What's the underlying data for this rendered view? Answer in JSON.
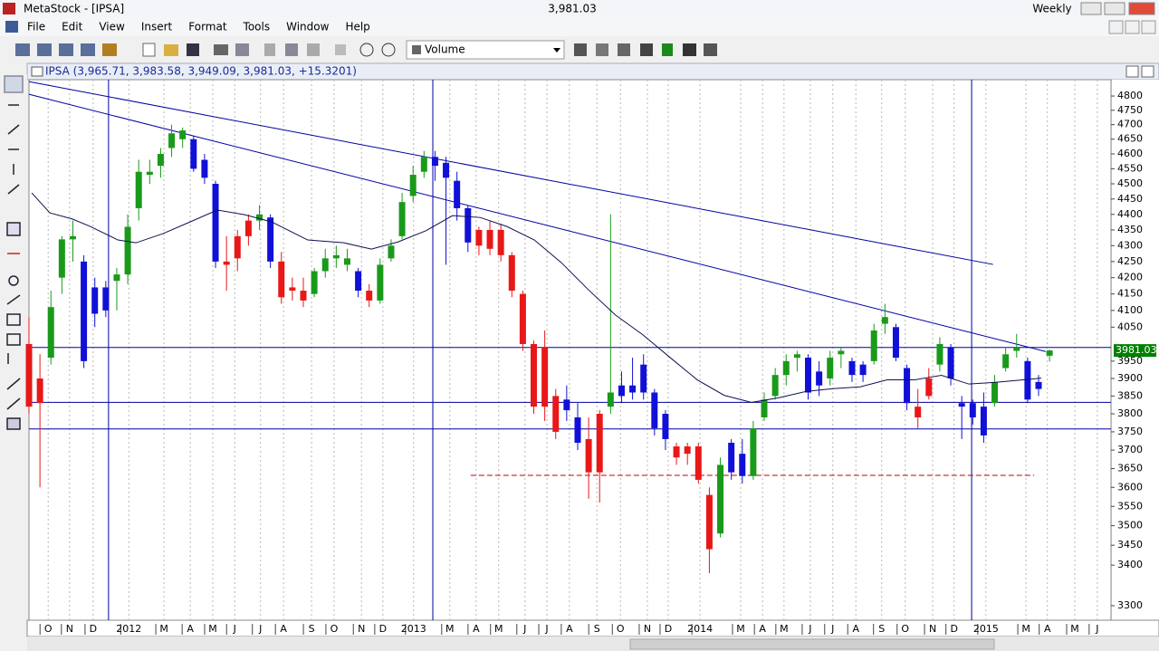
{
  "window": {
    "title": "MetaStock - [IPSA]",
    "price": "3,981.03",
    "periodicity": "Weekly"
  },
  "menu": [
    "File",
    "Edit",
    "View",
    "Insert",
    "Format",
    "Tools",
    "Window",
    "Help"
  ],
  "toolbar": {
    "indicator": "Volume"
  },
  "chart_window": {
    "label": "IPSA (3,965.71, 3,983.58, 3,949.09, 3,981.03, +15.3201)"
  },
  "chart_data": {
    "type": "candlestick",
    "log": true,
    "grid": true,
    "ylim": [
      3265,
      4858
    ],
    "yticks": [
      3300,
      3400,
      3450,
      3500,
      3550,
      3600,
      3650,
      3700,
      3750,
      3800,
      3850,
      3900,
      3950,
      4050,
      4100,
      4150,
      4200,
      4250,
      4300,
      4350,
      4400,
      4450,
      4500,
      4550,
      4600,
      4650,
      4700,
      4750,
      4800
    ],
    "xlim": [
      0,
      197.2
    ],
    "xticks": [
      {
        "value": 3.5,
        "label": "O"
      },
      {
        "value": 7.4,
        "label": "N"
      },
      {
        "value": 11.7,
        "label": "D"
      },
      {
        "value": 18.2,
        "label": "2012"
      },
      {
        "value": 24.6,
        "label": "M"
      },
      {
        "value": 29.4,
        "label": "A"
      },
      {
        "value": 33.5,
        "label": "M"
      },
      {
        "value": 37.5,
        "label": "J"
      },
      {
        "value": 42.2,
        "label": "J"
      },
      {
        "value": 46.4,
        "label": "A"
      },
      {
        "value": 51.5,
        "label": "S"
      },
      {
        "value": 55.6,
        "label": "O"
      },
      {
        "value": 60.6,
        "label": "N"
      },
      {
        "value": 64.5,
        "label": "D"
      },
      {
        "value": 70.1,
        "label": "2013"
      },
      {
        "value": 76.7,
        "label": "M"
      },
      {
        "value": 81.5,
        "label": "A"
      },
      {
        "value": 85.6,
        "label": "M"
      },
      {
        "value": 90.4,
        "label": "J"
      },
      {
        "value": 94.4,
        "label": "J"
      },
      {
        "value": 98.5,
        "label": "A"
      },
      {
        "value": 103.5,
        "label": "S"
      },
      {
        "value": 107.8,
        "label": "O"
      },
      {
        "value": 112.7,
        "label": "N"
      },
      {
        "value": 116.5,
        "label": "D"
      },
      {
        "value": 122.3,
        "label": "2014"
      },
      {
        "value": 129.7,
        "label": "M"
      },
      {
        "value": 133.7,
        "label": "A"
      },
      {
        "value": 137.6,
        "label": "M"
      },
      {
        "value": 142.4,
        "label": "J"
      },
      {
        "value": 146.5,
        "label": "J"
      },
      {
        "value": 150.7,
        "label": "A"
      },
      {
        "value": 155.4,
        "label": "S"
      },
      {
        "value": 159.7,
        "label": "O"
      },
      {
        "value": 164.7,
        "label": "N"
      },
      {
        "value": 168.6,
        "label": "D"
      },
      {
        "value": 174.4,
        "label": "2015"
      },
      {
        "value": 181.7,
        "label": "M"
      },
      {
        "value": 185.6,
        "label": "A"
      },
      {
        "value": 190.6,
        "label": "M"
      },
      {
        "value": 194.7,
        "label": "J"
      }
    ],
    "series": [
      {
        "color": "#1a9a1a",
        "x": [
          4,
          6,
          8,
          16,
          18,
          20,
          22,
          24,
          26,
          28,
          42,
          52,
          54,
          56,
          58,
          64,
          66,
          68,
          70,
          72,
          106,
          126,
          132,
          134,
          136,
          138,
          140,
          146,
          148,
          154,
          156,
          166,
          176,
          178,
          180,
          186
        ],
        "open": [
          3960,
          4200,
          4320,
          4190,
          4210,
          4420,
          4530,
          4560,
          4620,
          4650,
          4380,
          4150,
          4220,
          4270,
          4260,
          4130,
          4260,
          4330,
          4460,
          4540,
          3820,
          3480,
          3630,
          3790,
          3850,
          3910,
          3960,
          3900,
          3970,
          3950,
          4060,
          3940,
          3830,
          3930,
          3980,
          3965.71
        ],
        "high": [
          4160,
          4330,
          4380,
          4230,
          4400,
          4580,
          4580,
          4620,
          4700,
          4690,
          4430,
          4230,
          4290,
          4300,
          4290,
          4260,
          4320,
          4470,
          4560,
          4610,
          4400,
          3680,
          3780,
          3860,
          3930,
          3970,
          3980,
          3980,
          3990,
          4060,
          4120,
          4020,
          3910,
          3990,
          4030,
          3983.58
        ],
        "low": [
          3940,
          4150,
          4250,
          4100,
          4180,
          4380,
          4500,
          4520,
          4590,
          4620,
          4350,
          4140,
          4200,
          4230,
          4220,
          4120,
          4250,
          4320,
          4440,
          4520,
          3800,
          3470,
          3620,
          3780,
          3840,
          3880,
          3920,
          3880,
          3930,
          3940,
          4030,
          3920,
          3820,
          3920,
          3960,
          3949.09
        ],
        "close": [
          4110,
          4320,
          4330,
          4210,
          4360,
          4540,
          4540,
          4600,
          4670,
          4680,
          4400,
          4220,
          4260,
          4260,
          4240,
          4240,
          4300,
          4440,
          4530,
          4590,
          3860,
          3660,
          3760,
          3840,
          3910,
          3950,
          3970,
          3960,
          3980,
          4040,
          4080,
          4000,
          3890,
          3970,
          3990,
          3981.03
        ]
      },
      {
        "color": "#e81818",
        "x": [
          0,
          2,
          36,
          38,
          40,
          46,
          48,
          50,
          62,
          82,
          84,
          86,
          88,
          90,
          92,
          94,
          96,
          102,
          104,
          118,
          120,
          122,
          124,
          162,
          164
        ],
        "open": [
          4000,
          3830,
          4250,
          4260,
          4330,
          4250,
          4170,
          4160,
          4160,
          4300,
          4350,
          4350,
          4270,
          4150,
          4000,
          3990,
          3850,
          3730,
          3640,
          3710,
          3710,
          3710,
          3580,
          3820,
          3850
        ],
        "high": [
          4080,
          3970,
          4330,
          4350,
          4400,
          4280,
          4200,
          4200,
          4180,
          4360,
          4380,
          4370,
          4280,
          4160,
          4010,
          4040,
          3870,
          3790,
          3810,
          3720,
          3720,
          3720,
          3600,
          3870,
          3930
        ],
        "low": [
          3800,
          3600,
          4160,
          4220,
          4300,
          4120,
          4130,
          4110,
          4110,
          4270,
          4270,
          4250,
          4140,
          3980,
          3800,
          3780,
          3730,
          3570,
          3560,
          3660,
          3660,
          3610,
          3380,
          3760,
          3840
        ],
        "close": [
          3820,
          3900,
          4240,
          4330,
          4380,
          4140,
          4160,
          4130,
          4130,
          4350,
          4290,
          4270,
          4160,
          4000,
          3820,
          3820,
          3750,
          3640,
          3800,
          3680,
          3690,
          3620,
          3440,
          3790,
          3900
        ]
      },
      {
        "color": "#1010d8",
        "x": [
          10,
          12,
          14,
          30,
          32,
          34,
          44,
          60,
          74,
          76,
          78,
          80,
          98,
          100,
          108,
          110,
          112,
          114,
          116,
          128,
          130,
          142,
          144,
          150,
          152,
          158,
          160,
          168,
          170,
          172,
          174,
          182,
          184
        ],
        "open": [
          4250,
          4170,
          4170,
          4650,
          4580,
          4500,
          4390,
          4220,
          4590,
          4570,
          4510,
          4420,
          3840,
          3790,
          3880,
          3860,
          3940,
          3860,
          3800,
          3720,
          3690,
          3960,
          3920,
          3950,
          3940,
          4050,
          3930,
          3990,
          3830,
          3830,
          3820,
          3950,
          3870
        ],
        "high": [
          4270,
          4200,
          4190,
          4660,
          4600,
          4510,
          4400,
          4230,
          4610,
          4590,
          4540,
          4430,
          3880,
          3830,
          3920,
          3960,
          3970,
          3870,
          3810,
          3730,
          3730,
          3970,
          3950,
          3960,
          3950,
          4060,
          3940,
          4000,
          3850,
          3840,
          3860,
          3960,
          3910
        ],
        "low": [
          3930,
          4050,
          4080,
          4540,
          4500,
          4230,
          4230,
          4140,
          4510,
          4240,
          4380,
          4280,
          3780,
          3700,
          3830,
          3840,
          3840,
          3740,
          3700,
          3620,
          3610,
          3840,
          3850,
          3890,
          3890,
          3950,
          3810,
          3880,
          3730,
          3770,
          3720,
          3830,
          3850
        ],
        "close": [
          3950,
          4090,
          4100,
          4550,
          4520,
          4250,
          4250,
          4160,
          4560,
          4520,
          4420,
          4310,
          3810,
          3720,
          3850,
          3880,
          3860,
          3760,
          3730,
          3640,
          3630,
          3860,
          3880,
          3910,
          3910,
          3960,
          3830,
          3900,
          3820,
          3790,
          3740,
          3840,
          3890
        ]
      }
    ],
    "moving_average": {
      "color": "#101050",
      "x": [
        0.5,
        3.8,
        7.9,
        11.2,
        16.2,
        19.5,
        24.4,
        29.4,
        34.3,
        39.3,
        44.2,
        50.8,
        57.4,
        62.4,
        67.3,
        72.3,
        77.2,
        82.2,
        87.1,
        92.1,
        97.0,
        102.0,
        106.9,
        111.9,
        116.8,
        121.8,
        126.7,
        131.7,
        136.6,
        141.6,
        146.5,
        151.5,
        156.4,
        161.4,
        166.3,
        171.3,
        176.2,
        181.2,
        184.5
      ],
      "values": [
        4470,
        4405,
        4385,
        4361,
        4318,
        4309,
        4338,
        4376,
        4414,
        4399,
        4376,
        4318,
        4309,
        4289,
        4312,
        4347,
        4396,
        4390,
        4361,
        4318,
        4247,
        4162,
        4086,
        4027,
        3961,
        3896,
        3852,
        3832,
        3845,
        3863,
        3871,
        3876,
        3896,
        3896,
        3909,
        3884,
        3889,
        3896,
        3901
      ]
    },
    "trendlines": [
      {
        "color": "#0000a0",
        "x": [
          0,
          175.7
        ],
        "y": [
          4851,
          4241
        ]
      },
      {
        "color": "#0000a0",
        "x": [
          0,
          185.3
        ],
        "y": [
          4806,
          3978
        ]
      }
    ],
    "hlines": {
      "color": "#0000a0",
      "values": [
        3990,
        3832,
        3758
      ]
    },
    "vlines": {
      "color": "#0000a0",
      "values": [
        14.5,
        73.6,
        171.8
      ]
    },
    "support_line": {
      "color": "#c00000",
      "x": [
        80.5,
        183.2
      ],
      "value": 3632
    },
    "price_label": {
      "value": 3981.03,
      "label": "3981.03",
      "color": "#008000"
    }
  }
}
